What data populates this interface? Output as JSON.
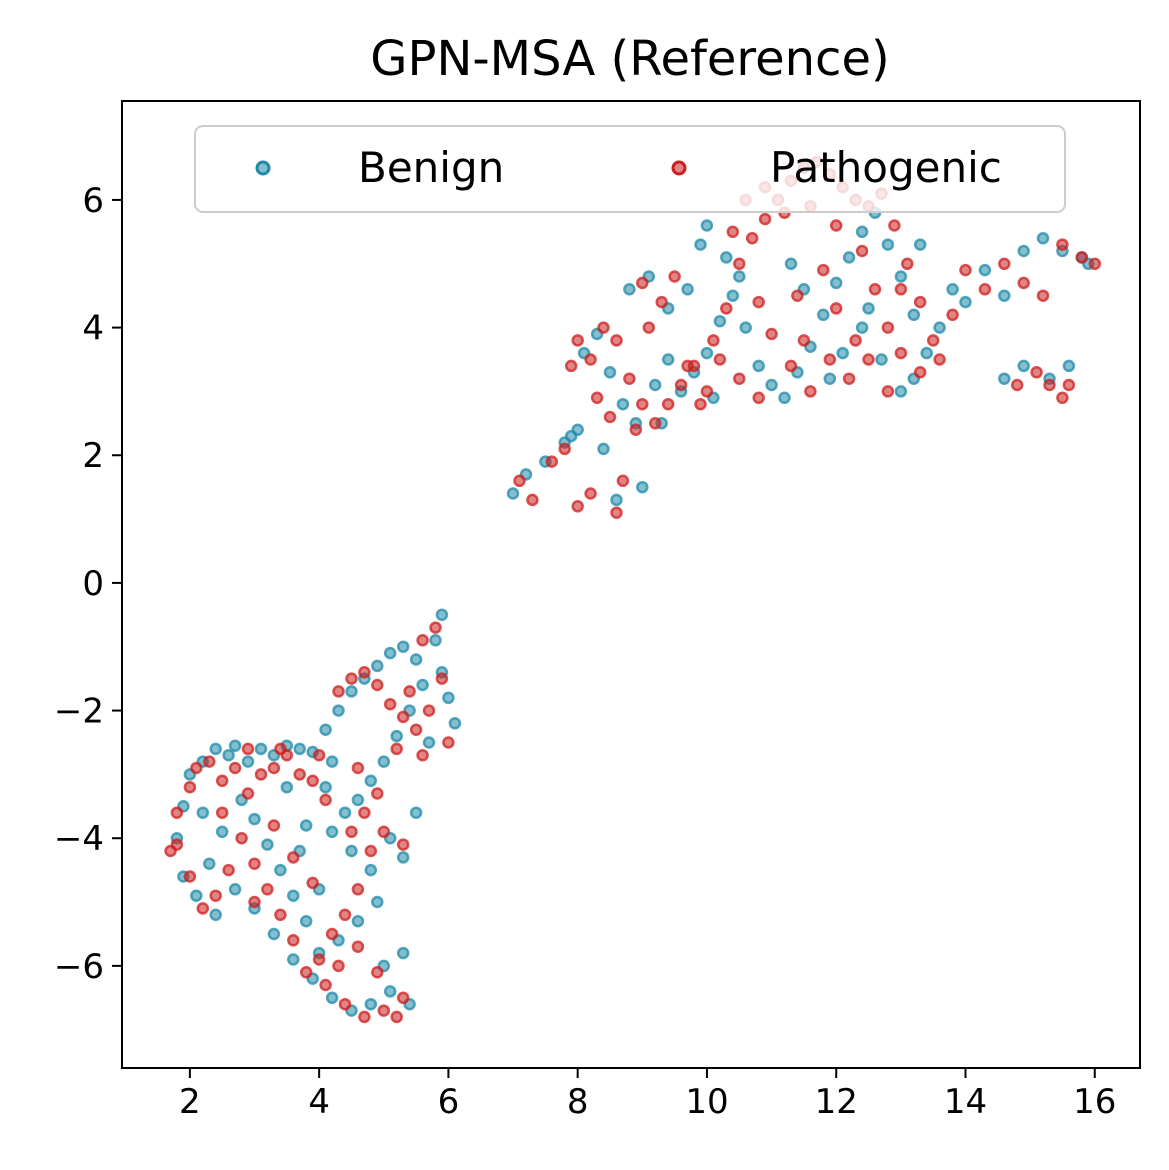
{
  "chart_data": {
    "type": "scatter",
    "title": "GPN-MSA (Reference)",
    "xlabel": "",
    "ylabel": "",
    "xlim": [
      0.95,
      16.7
    ],
    "ylim": [
      -7.6,
      7.55
    ],
    "xticks": [
      2,
      4,
      6,
      8,
      10,
      12,
      14,
      16
    ],
    "yticks": [
      -6,
      -4,
      -2,
      0,
      2,
      4,
      6
    ],
    "xtick_labels": [
      "2",
      "4",
      "6",
      "8",
      "10",
      "12",
      "14",
      "16"
    ],
    "ytick_labels": [
      "−6",
      "−4",
      "−2",
      "0",
      "2",
      "4",
      "6"
    ],
    "grid": false,
    "legend_position": "upper center",
    "series": [
      {
        "name": "Benign",
        "color": "#1f8aa8",
        "points": [
          [
            1.8,
            -4.0
          ],
          [
            1.9,
            -3.5
          ],
          [
            2.0,
            -3.0
          ],
          [
            2.2,
            -2.8
          ],
          [
            2.4,
            -2.6
          ],
          [
            2.6,
            -2.7
          ],
          [
            2.7,
            -2.55
          ],
          [
            2.9,
            -2.8
          ],
          [
            3.1,
            -2.6
          ],
          [
            3.3,
            -2.7
          ],
          [
            3.5,
            -2.55
          ],
          [
            3.7,
            -2.6
          ],
          [
            3.9,
            -2.65
          ],
          [
            4.2,
            -2.8
          ],
          [
            4.1,
            -2.3
          ],
          [
            4.3,
            -2.0
          ],
          [
            4.5,
            -1.7
          ],
          [
            4.7,
            -1.5
          ],
          [
            4.9,
            -1.3
          ],
          [
            5.1,
            -1.1
          ],
          [
            5.3,
            -1.0
          ],
          [
            5.5,
            -1.2
          ],
          [
            5.6,
            -1.6
          ],
          [
            5.8,
            -0.9
          ],
          [
            5.9,
            -0.5
          ],
          [
            6.0,
            -1.8
          ],
          [
            6.1,
            -2.2
          ],
          [
            5.4,
            -2.0
          ],
          [
            5.2,
            -2.4
          ],
          [
            5.0,
            -2.8
          ],
          [
            4.8,
            -3.1
          ],
          [
            4.6,
            -3.4
          ],
          [
            4.4,
            -3.6
          ],
          [
            4.2,
            -3.9
          ],
          [
            4.5,
            -4.2
          ],
          [
            4.8,
            -4.5
          ],
          [
            5.1,
            -4.0
          ],
          [
            5.5,
            -3.6
          ],
          [
            5.3,
            -4.3
          ],
          [
            4.9,
            -5.0
          ],
          [
            4.6,
            -5.3
          ],
          [
            4.3,
            -5.6
          ],
          [
            4.0,
            -5.8
          ],
          [
            3.8,
            -5.3
          ],
          [
            3.6,
            -4.9
          ],
          [
            3.4,
            -4.5
          ],
          [
            3.2,
            -4.1
          ],
          [
            3.0,
            -3.7
          ],
          [
            2.8,
            -3.4
          ],
          [
            2.5,
            -3.9
          ],
          [
            2.3,
            -4.4
          ],
          [
            2.1,
            -4.9
          ],
          [
            2.4,
            -5.2
          ],
          [
            2.7,
            -4.8
          ],
          [
            3.0,
            -5.1
          ],
          [
            3.3,
            -5.5
          ],
          [
            3.6,
            -5.9
          ],
          [
            3.9,
            -6.2
          ],
          [
            4.2,
            -6.5
          ],
          [
            4.5,
            -6.7
          ],
          [
            4.8,
            -6.6
          ],
          [
            5.1,
            -6.4
          ],
          [
            5.3,
            -5.8
          ],
          [
            5.4,
            -6.6
          ],
          [
            5.0,
            -6.0
          ],
          [
            3.7,
            -4.2
          ],
          [
            3.5,
            -3.2
          ],
          [
            4.0,
            -4.8
          ],
          [
            2.2,
            -3.6
          ],
          [
            1.9,
            -4.6
          ],
          [
            5.7,
            -2.5
          ],
          [
            5.9,
            -1.4
          ],
          [
            4.1,
            -3.2
          ],
          [
            3.8,
            -3.8
          ],
          [
            7.0,
            1.4
          ],
          [
            7.2,
            1.7
          ],
          [
            7.5,
            1.9
          ],
          [
            7.8,
            2.2
          ],
          [
            8.0,
            2.4
          ],
          [
            8.1,
            3.6
          ],
          [
            8.3,
            3.9
          ],
          [
            8.5,
            3.3
          ],
          [
            8.7,
            2.8
          ],
          [
            8.9,
            2.5
          ],
          [
            9.0,
            1.5
          ],
          [
            8.6,
            1.3
          ],
          [
            9.2,
            3.1
          ],
          [
            9.4,
            3.5
          ],
          [
            9.6,
            3.0
          ],
          [
            9.8,
            3.3
          ],
          [
            10.0,
            3.6
          ],
          [
            10.2,
            4.1
          ],
          [
            10.4,
            4.5
          ],
          [
            10.6,
            4.0
          ],
          [
            10.8,
            3.4
          ],
          [
            11.0,
            3.1
          ],
          [
            11.2,
            2.9
          ],
          [
            11.4,
            3.3
          ],
          [
            11.6,
            3.7
          ],
          [
            11.8,
            4.2
          ],
          [
            12.0,
            4.7
          ],
          [
            12.2,
            5.1
          ],
          [
            12.4,
            5.5
          ],
          [
            12.6,
            5.8
          ],
          [
            12.8,
            5.3
          ],
          [
            13.0,
            4.8
          ],
          [
            13.2,
            4.2
          ],
          [
            13.4,
            3.6
          ],
          [
            13.2,
            3.2
          ],
          [
            13.0,
            3.0
          ],
          [
            12.7,
            3.5
          ],
          [
            12.4,
            4.0
          ],
          [
            12.1,
            3.6
          ],
          [
            11.9,
            3.2
          ],
          [
            14.0,
            4.4
          ],
          [
            14.3,
            4.9
          ],
          [
            14.6,
            4.5
          ],
          [
            14.9,
            5.2
          ],
          [
            15.2,
            5.4
          ],
          [
            15.5,
            5.2
          ],
          [
            15.8,
            5.1
          ],
          [
            15.9,
            5.0
          ],
          [
            15.6,
            3.4
          ],
          [
            15.3,
            3.2
          ],
          [
            14.9,
            3.4
          ],
          [
            14.6,
            3.2
          ],
          [
            10.0,
            5.6
          ],
          [
            10.3,
            5.1
          ],
          [
            10.5,
            4.8
          ],
          [
            9.7,
            4.6
          ],
          [
            9.4,
            4.3
          ],
          [
            9.1,
            4.8
          ],
          [
            8.8,
            4.6
          ],
          [
            9.9,
            5.3
          ],
          [
            10.1,
            2.9
          ],
          [
            9.3,
            2.5
          ],
          [
            8.4,
            2.1
          ],
          [
            7.9,
            2.3
          ],
          [
            13.6,
            4.0
          ],
          [
            13.8,
            4.6
          ],
          [
            11.3,
            5.0
          ],
          [
            11.5,
            4.6
          ],
          [
            12.5,
            4.3
          ],
          [
            13.3,
            5.3
          ]
        ]
      },
      {
        "name": "Pathogenic",
        "color": "#cc1f1f",
        "points": [
          [
            1.7,
            -4.2
          ],
          [
            1.8,
            -3.6
          ],
          [
            2.0,
            -3.2
          ],
          [
            2.1,
            -2.9
          ],
          [
            2.3,
            -2.8
          ],
          [
            2.5,
            -3.1
          ],
          [
            2.7,
            -2.9
          ],
          [
            2.9,
            -3.3
          ],
          [
            3.1,
            -3.0
          ],
          [
            3.3,
            -2.9
          ],
          [
            3.5,
            -2.7
          ],
          [
            3.7,
            -3.0
          ],
          [
            3.9,
            -3.1
          ],
          [
            4.1,
            -3.4
          ],
          [
            4.3,
            -1.7
          ],
          [
            4.5,
            -1.5
          ],
          [
            4.7,
            -1.4
          ],
          [
            4.9,
            -1.6
          ],
          [
            5.1,
            -1.9
          ],
          [
            5.3,
            -2.1
          ],
          [
            5.5,
            -2.3
          ],
          [
            5.7,
            -2.0
          ],
          [
            5.8,
            -0.7
          ],
          [
            5.9,
            -1.5
          ],
          [
            6.0,
            -2.5
          ],
          [
            5.6,
            -2.7
          ],
          [
            5.2,
            -2.6
          ],
          [
            4.9,
            -3.3
          ],
          [
            4.7,
            -3.6
          ],
          [
            4.5,
            -3.9
          ],
          [
            4.8,
            -4.2
          ],
          [
            5.0,
            -3.9
          ],
          [
            5.3,
            -4.1
          ],
          [
            4.6,
            -4.8
          ],
          [
            4.4,
            -5.2
          ],
          [
            4.2,
            -5.5
          ],
          [
            4.0,
            -5.9
          ],
          [
            3.8,
            -6.1
          ],
          [
            4.1,
            -6.3
          ],
          [
            4.4,
            -6.6
          ],
          [
            4.7,
            -6.8
          ],
          [
            5.0,
            -6.7
          ],
          [
            5.3,
            -6.5
          ],
          [
            5.2,
            -6.8
          ],
          [
            3.6,
            -5.6
          ],
          [
            3.4,
            -5.2
          ],
          [
            3.2,
            -4.8
          ],
          [
            3.0,
            -4.4
          ],
          [
            2.8,
            -4.0
          ],
          [
            2.6,
            -4.5
          ],
          [
            2.4,
            -4.9
          ],
          [
            2.2,
            -5.1
          ],
          [
            2.0,
            -4.6
          ],
          [
            1.8,
            -4.1
          ],
          [
            2.5,
            -3.6
          ],
          [
            3.0,
            -5.0
          ],
          [
            3.3,
            -3.8
          ],
          [
            3.6,
            -4.3
          ],
          [
            3.9,
            -4.7
          ],
          [
            4.3,
            -6.0
          ],
          [
            4.6,
            -5.7
          ],
          [
            4.9,
            -6.1
          ],
          [
            2.9,
            -2.6
          ],
          [
            3.4,
            -2.6
          ],
          [
            4.6,
            -2.9
          ],
          [
            5.4,
            -1.7
          ],
          [
            5.6,
            -0.9
          ],
          [
            4.0,
            -2.7
          ],
          [
            7.1,
            1.6
          ],
          [
            7.3,
            1.3
          ],
          [
            7.6,
            1.9
          ],
          [
            7.8,
            2.1
          ],
          [
            8.0,
            1.2
          ],
          [
            8.2,
            1.4
          ],
          [
            8.0,
            3.8
          ],
          [
            8.2,
            3.5
          ],
          [
            8.4,
            4.0
          ],
          [
            8.6,
            3.8
          ],
          [
            8.8,
            3.2
          ],
          [
            9.0,
            2.8
          ],
          [
            9.2,
            2.5
          ],
          [
            8.7,
            1.6
          ],
          [
            8.6,
            1.1
          ],
          [
            9.4,
            2.8
          ],
          [
            9.6,
            3.1
          ],
          [
            9.8,
            3.4
          ],
          [
            10.1,
            3.8
          ],
          [
            10.3,
            4.3
          ],
          [
            10.5,
            5.0
          ],
          [
            10.7,
            5.4
          ],
          [
            10.9,
            5.7
          ],
          [
            11.1,
            6.0
          ],
          [
            11.3,
            6.3
          ],
          [
            11.5,
            6.5
          ],
          [
            11.7,
            6.6
          ],
          [
            11.9,
            6.4
          ],
          [
            12.1,
            6.2
          ],
          [
            12.3,
            6.0
          ],
          [
            12.5,
            5.9
          ],
          [
            12.7,
            6.1
          ],
          [
            12.9,
            5.6
          ],
          [
            13.1,
            5.0
          ],
          [
            13.3,
            4.4
          ],
          [
            13.5,
            3.8
          ],
          [
            13.3,
            3.3
          ],
          [
            13.0,
            3.6
          ],
          [
            12.8,
            4.0
          ],
          [
            12.5,
            3.5
          ],
          [
            12.2,
            3.2
          ],
          [
            11.9,
            3.5
          ],
          [
            11.6,
            3.0
          ],
          [
            11.3,
            3.4
          ],
          [
            11.0,
            3.9
          ],
          [
            10.8,
            4.4
          ],
          [
            10.5,
            3.2
          ],
          [
            10.2,
            3.5
          ],
          [
            10.0,
            3.0
          ],
          [
            9.7,
            3.4
          ],
          [
            9.5,
            4.8
          ],
          [
            9.3,
            4.4
          ],
          [
            9.1,
            4.0
          ],
          [
            9.0,
            4.7
          ],
          [
            13.8,
            4.2
          ],
          [
            14.0,
            4.9
          ],
          [
            14.3,
            4.6
          ],
          [
            14.6,
            5.0
          ],
          [
            14.9,
            4.7
          ],
          [
            15.2,
            4.5
          ],
          [
            15.5,
            5.3
          ],
          [
            15.8,
            5.1
          ],
          [
            16.0,
            5.0
          ],
          [
            15.6,
            3.1
          ],
          [
            15.5,
            2.9
          ],
          [
            15.3,
            3.1
          ],
          [
            15.1,
            3.3
          ],
          [
            14.8,
            3.1
          ],
          [
            10.4,
            5.5
          ],
          [
            10.6,
            6.0
          ],
          [
            10.9,
            6.2
          ],
          [
            11.2,
            5.8
          ],
          [
            11.6,
            5.9
          ],
          [
            12.0,
            5.6
          ],
          [
            12.4,
            5.2
          ],
          [
            12.6,
            4.6
          ],
          [
            11.8,
            4.9
          ],
          [
            11.4,
            4.5
          ],
          [
            13.0,
            4.6
          ],
          [
            12.0,
            4.3
          ],
          [
            11.5,
            3.8
          ],
          [
            12.8,
            3.0
          ],
          [
            10.8,
            2.9
          ],
          [
            9.9,
            2.8
          ],
          [
            8.9,
            2.4
          ],
          [
            7.9,
            3.4
          ],
          [
            8.3,
            2.9
          ],
          [
            8.5,
            2.6
          ],
          [
            13.6,
            3.5
          ],
          [
            12.3,
            3.8
          ]
        ]
      }
    ]
  }
}
